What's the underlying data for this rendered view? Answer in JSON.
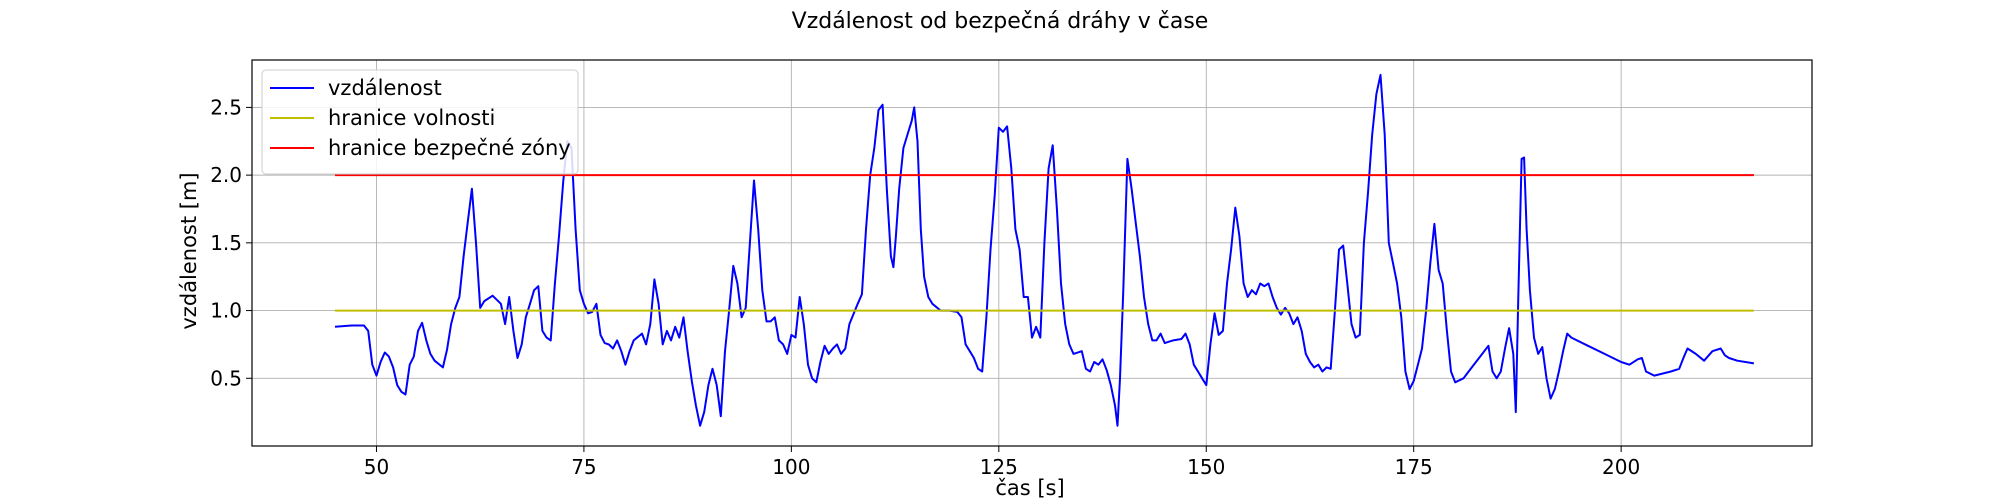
{
  "chart_data": {
    "type": "line",
    "title": "Vzdálenost od bezpečná dráhy v čase",
    "xlabel": "čas [s]",
    "ylabel": "vzdálenost [m]",
    "xlim": [
      35,
      223
    ],
    "ylim": [
      0,
      2.85
    ],
    "xticks": [
      50,
      75,
      100,
      125,
      150,
      175,
      200
    ],
    "xtick_labels": [
      "50",
      "75",
      "100",
      "125",
      "150",
      "175",
      "200"
    ],
    "yticks": [
      0.5,
      1.0,
      1.5,
      2.0,
      2.5
    ],
    "ytick_labels": [
      "0.5",
      "1.0",
      "1.5",
      "2.0",
      "2.5"
    ],
    "grid": true,
    "legend_position": "top-left",
    "series": [
      {
        "name": "vzdálenost",
        "color": "#0000ff",
        "points": [
          [
            45,
            0.88
          ],
          [
            47,
            0.89
          ],
          [
            48.5,
            0.89
          ],
          [
            49,
            0.85
          ],
          [
            49.5,
            0.6
          ],
          [
            50,
            0.52
          ],
          [
            50.5,
            0.62
          ],
          [
            51,
            0.69
          ],
          [
            51.5,
            0.66
          ],
          [
            52,
            0.58
          ],
          [
            52.5,
            0.45
          ],
          [
            53,
            0.4
          ],
          [
            53.5,
            0.38
          ],
          [
            54,
            0.6
          ],
          [
            54.5,
            0.66
          ],
          [
            55,
            0.85
          ],
          [
            55.5,
            0.91
          ],
          [
            56,
            0.78
          ],
          [
            56.5,
            0.68
          ],
          [
            57,
            0.63
          ],
          [
            58,
            0.58
          ],
          [
            58.5,
            0.71
          ],
          [
            59,
            0.9
          ],
          [
            59.5,
            1.02
          ],
          [
            60,
            1.1
          ],
          [
            60.5,
            1.4
          ],
          [
            61,
            1.65
          ],
          [
            61.5,
            1.9
          ],
          [
            62,
            1.5
          ],
          [
            62.5,
            1.02
          ],
          [
            63,
            1.07
          ],
          [
            64,
            1.11
          ],
          [
            65,
            1.05
          ],
          [
            65.5,
            0.9
          ],
          [
            66,
            1.1
          ],
          [
            66.5,
            0.85
          ],
          [
            67,
            0.65
          ],
          [
            67.5,
            0.75
          ],
          [
            68,
            0.95
          ],
          [
            68.5,
            1.05
          ],
          [
            69,
            1.15
          ],
          [
            69.5,
            1.18
          ],
          [
            70,
            0.85
          ],
          [
            70.5,
            0.8
          ],
          [
            71,
            0.78
          ],
          [
            71.5,
            1.2
          ],
          [
            72,
            1.55
          ],
          [
            72.5,
            1.95
          ],
          [
            73,
            2.25
          ],
          [
            73.5,
            2.2
          ],
          [
            74,
            1.6
          ],
          [
            74.5,
            1.15
          ],
          [
            75,
            1.05
          ],
          [
            75.5,
            0.98
          ],
          [
            76,
            0.99
          ],
          [
            76.5,
            1.05
          ],
          [
            77,
            0.82
          ],
          [
            77.5,
            0.76
          ],
          [
            78,
            0.75
          ],
          [
            78.5,
            0.72
          ],
          [
            79,
            0.78
          ],
          [
            79.5,
            0.7
          ],
          [
            80,
            0.6
          ],
          [
            80.5,
            0.7
          ],
          [
            81,
            0.78
          ],
          [
            82,
            0.83
          ],
          [
            82.5,
            0.75
          ],
          [
            83,
            0.9
          ],
          [
            83.5,
            1.23
          ],
          [
            84,
            1.05
          ],
          [
            84.5,
            0.75
          ],
          [
            85,
            0.85
          ],
          [
            85.5,
            0.78
          ],
          [
            86,
            0.88
          ],
          [
            86.5,
            0.8
          ],
          [
            87,
            0.95
          ],
          [
            87.5,
            0.7
          ],
          [
            88,
            0.48
          ],
          [
            88.5,
            0.3
          ],
          [
            89,
            0.15
          ],
          [
            89.5,
            0.25
          ],
          [
            90,
            0.45
          ],
          [
            90.5,
            0.57
          ],
          [
            91,
            0.45
          ],
          [
            91.5,
            0.22
          ],
          [
            92,
            0.7
          ],
          [
            92.5,
            1.0
          ],
          [
            93,
            1.33
          ],
          [
            93.5,
            1.2
          ],
          [
            94,
            0.95
          ],
          [
            94.5,
            1.02
          ],
          [
            95,
            1.5
          ],
          [
            95.5,
            1.96
          ],
          [
            96,
            1.6
          ],
          [
            96.5,
            1.15
          ],
          [
            97,
            0.92
          ],
          [
            97.5,
            0.92
          ],
          [
            98,
            0.95
          ],
          [
            98.5,
            0.78
          ],
          [
            99,
            0.75
          ],
          [
            99.5,
            0.68
          ],
          [
            100,
            0.82
          ],
          [
            100.5,
            0.8
          ],
          [
            101,
            1.1
          ],
          [
            101.5,
            0.9
          ],
          [
            102,
            0.6
          ],
          [
            102.5,
            0.5
          ],
          [
            103,
            0.47
          ],
          [
            103.5,
            0.62
          ],
          [
            104,
            0.74
          ],
          [
            104.5,
            0.68
          ],
          [
            105,
            0.72
          ],
          [
            105.5,
            0.75
          ],
          [
            106,
            0.68
          ],
          [
            106.5,
            0.72
          ],
          [
            107,
            0.9
          ],
          [
            108,
            1.05
          ],
          [
            108.5,
            1.12
          ],
          [
            109,
            1.6
          ],
          [
            109.5,
            2.0
          ],
          [
            110,
            2.2
          ],
          [
            110.5,
            2.48
          ],
          [
            111,
            2.52
          ],
          [
            111.5,
            1.9
          ],
          [
            112,
            1.4
          ],
          [
            112.3,
            1.32
          ],
          [
            112.6,
            1.55
          ],
          [
            113,
            1.9
          ],
          [
            113.5,
            2.2
          ],
          [
            114,
            2.3
          ],
          [
            114.5,
            2.4
          ],
          [
            114.8,
            2.5
          ],
          [
            115.2,
            2.25
          ],
          [
            115.6,
            1.6
          ],
          [
            116,
            1.25
          ],
          [
            116.5,
            1.1
          ],
          [
            117,
            1.05
          ],
          [
            118,
            1.0
          ],
          [
            119,
            1.0
          ],
          [
            120,
            0.99
          ],
          [
            120.5,
            0.95
          ],
          [
            121,
            0.75
          ],
          [
            121.5,
            0.7
          ],
          [
            122,
            0.65
          ],
          [
            122.5,
            0.57
          ],
          [
            123,
            0.55
          ],
          [
            123.5,
            0.95
          ],
          [
            124,
            1.45
          ],
          [
            124.5,
            1.85
          ],
          [
            125,
            2.35
          ],
          [
            125.5,
            2.32
          ],
          [
            126,
            2.36
          ],
          [
            126.5,
            2.05
          ],
          [
            127,
            1.6
          ],
          [
            127.5,
            1.45
          ],
          [
            128,
            1.1
          ],
          [
            128.5,
            1.1
          ],
          [
            129,
            0.8
          ],
          [
            129.5,
            0.88
          ],
          [
            130,
            0.8
          ],
          [
            130.5,
            1.5
          ],
          [
            131,
            2.05
          ],
          [
            131.5,
            2.22
          ],
          [
            132,
            1.75
          ],
          [
            132.5,
            1.2
          ],
          [
            133,
            0.9
          ],
          [
            133.5,
            0.75
          ],
          [
            134,
            0.68
          ],
          [
            135,
            0.7
          ],
          [
            135.5,
            0.57
          ],
          [
            136,
            0.55
          ],
          [
            136.5,
            0.62
          ],
          [
            137,
            0.6
          ],
          [
            137.5,
            0.64
          ],
          [
            138,
            0.56
          ],
          [
            138.5,
            0.45
          ],
          [
            139,
            0.3
          ],
          [
            139.3,
            0.15
          ],
          [
            139.6,
            0.5
          ],
          [
            140,
            1.15
          ],
          [
            140.5,
            2.12
          ],
          [
            141,
            1.9
          ],
          [
            141.5,
            1.65
          ],
          [
            142,
            1.4
          ],
          [
            142.5,
            1.1
          ],
          [
            143,
            0.9
          ],
          [
            143.5,
            0.78
          ],
          [
            144,
            0.78
          ],
          [
            144.5,
            0.83
          ],
          [
            145,
            0.76
          ],
          [
            145.5,
            0.77
          ],
          [
            146,
            0.78
          ],
          [
            147,
            0.79
          ],
          [
            147.5,
            0.83
          ],
          [
            148,
            0.75
          ],
          [
            148.5,
            0.6
          ],
          [
            149,
            0.55
          ],
          [
            149.5,
            0.5
          ],
          [
            150,
            0.45
          ],
          [
            150.5,
            0.75
          ],
          [
            151,
            0.98
          ],
          [
            151.5,
            0.82
          ],
          [
            152,
            0.85
          ],
          [
            152.5,
            1.2
          ],
          [
            153,
            1.45
          ],
          [
            153.5,
            1.76
          ],
          [
            154,
            1.55
          ],
          [
            154.5,
            1.2
          ],
          [
            155,
            1.1
          ],
          [
            155.5,
            1.15
          ],
          [
            156,
            1.12
          ],
          [
            156.5,
            1.2
          ],
          [
            157,
            1.18
          ],
          [
            157.5,
            1.2
          ],
          [
            158,
            1.1
          ],
          [
            158.5,
            1.02
          ],
          [
            159,
            0.97
          ],
          [
            159.5,
            1.02
          ],
          [
            160,
            0.98
          ],
          [
            160.5,
            0.9
          ],
          [
            161,
            0.95
          ],
          [
            161.5,
            0.85
          ],
          [
            162,
            0.68
          ],
          [
            162.5,
            0.62
          ],
          [
            163,
            0.58
          ],
          [
            163.5,
            0.6
          ],
          [
            164,
            0.55
          ],
          [
            164.5,
            0.58
          ],
          [
            165,
            0.57
          ],
          [
            165.5,
            1.0
          ],
          [
            166,
            1.45
          ],
          [
            166.5,
            1.48
          ],
          [
            167,
            1.2
          ],
          [
            167.5,
            0.9
          ],
          [
            168,
            0.8
          ],
          [
            168.5,
            0.82
          ],
          [
            169,
            1.5
          ],
          [
            169.5,
            1.88
          ],
          [
            170,
            2.3
          ],
          [
            170.5,
            2.6
          ],
          [
            171,
            2.74
          ],
          [
            171.5,
            2.3
          ],
          [
            172,
            1.5
          ],
          [
            172.5,
            1.35
          ],
          [
            173,
            1.2
          ],
          [
            173.5,
            0.95
          ],
          [
            174,
            0.55
          ],
          [
            174.5,
            0.42
          ],
          [
            175,
            0.48
          ],
          [
            175.5,
            0.6
          ],
          [
            176,
            0.72
          ],
          [
            176.5,
            1.0
          ],
          [
            177,
            1.35
          ],
          [
            177.5,
            1.64
          ],
          [
            178,
            1.3
          ],
          [
            178.5,
            1.2
          ],
          [
            179,
            0.85
          ],
          [
            179.5,
            0.55
          ],
          [
            180,
            0.47
          ],
          [
            181,
            0.5
          ],
          [
            182,
            0.58
          ],
          [
            183,
            0.66
          ],
          [
            184,
            0.74
          ],
          [
            184.5,
            0.55
          ],
          [
            185,
            0.5
          ],
          [
            185.5,
            0.55
          ],
          [
            186,
            0.72
          ],
          [
            186.5,
            0.87
          ],
          [
            187,
            0.68
          ],
          [
            187.3,
            0.25
          ],
          [
            187.6,
            1.1
          ],
          [
            188,
            2.12
          ],
          [
            188.3,
            2.13
          ],
          [
            188.6,
            1.6
          ],
          [
            189,
            1.15
          ],
          [
            189.5,
            0.8
          ],
          [
            190,
            0.68
          ],
          [
            190.5,
            0.73
          ],
          [
            191,
            0.5
          ],
          [
            191.5,
            0.35
          ],
          [
            192,
            0.42
          ],
          [
            192.5,
            0.55
          ],
          [
            193,
            0.7
          ],
          [
            193.5,
            0.83
          ],
          [
            194,
            0.8
          ],
          [
            196,
            0.74
          ],
          [
            198,
            0.68
          ],
          [
            200,
            0.62
          ],
          [
            201,
            0.6
          ],
          [
            202,
            0.64
          ],
          [
            202.5,
            0.65
          ],
          [
            203,
            0.55
          ],
          [
            204,
            0.52
          ],
          [
            206,
            0.55
          ],
          [
            207,
            0.57
          ],
          [
            207.5,
            0.65
          ],
          [
            208,
            0.72
          ],
          [
            209,
            0.68
          ],
          [
            210,
            0.63
          ],
          [
            211,
            0.7
          ],
          [
            212,
            0.72
          ],
          [
            212.5,
            0.67
          ],
          [
            213,
            0.65
          ],
          [
            214,
            0.63
          ],
          [
            216,
            0.61
          ]
        ]
      },
      {
        "name": "hranice volnosti",
        "color": "#bfbf00",
        "points": [
          [
            45,
            1.0
          ],
          [
            216,
            1.0
          ]
        ]
      },
      {
        "name": "hranice bezpečné zóny",
        "color": "#ff0000",
        "points": [
          [
            45,
            2.0
          ],
          [
            216,
            2.0
          ]
        ]
      }
    ]
  }
}
